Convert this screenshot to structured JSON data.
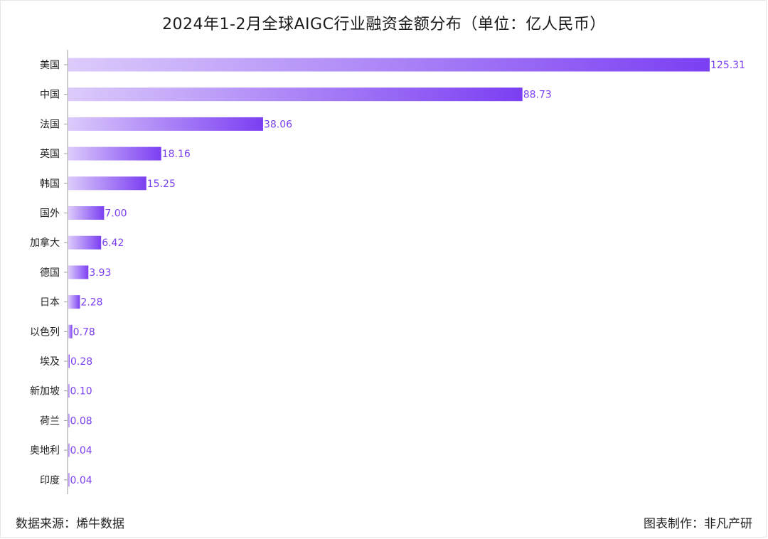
{
  "title": "2024年1-2月全球AIGC行业融资金额分布（单位：亿人民币）",
  "footer": {
    "source": "数据来源：烯牛数据",
    "maker": "图表制作：非凡产研"
  },
  "chart_data": {
    "type": "bar",
    "orientation": "horizontal",
    "title": "2024年1-2月全球AIGC行业融资金额分布（单位：亿人民币）",
    "xlabel": "",
    "ylabel": "",
    "grid": false,
    "categories": [
      "美国",
      "中国",
      "法国",
      "英国",
      "韩国",
      "国外",
      "加拿大",
      "德国",
      "日本",
      "以色列",
      "埃及",
      "新加坡",
      "荷兰",
      "奥地利",
      "印度"
    ],
    "values": [
      125.31,
      88.73,
      38.06,
      18.16,
      15.25,
      7.0,
      6.42,
      3.93,
      2.28,
      0.78,
      0.28,
      0.1,
      0.08,
      0.04,
      0.04
    ],
    "value_labels": [
      "125.31",
      "88.73",
      "38.06",
      "18.16",
      "15.25",
      "7.00",
      "6.42",
      "3.93",
      "2.28",
      "0.78",
      "0.28",
      "0.10",
      "0.08",
      "0.04",
      "0.04"
    ],
    "xlim": [
      0,
      125.31
    ],
    "colors": {
      "bar_start": "#dccbfb",
      "bar_end": "#7b3ff2",
      "label": "#7b3ff2",
      "axis": "#999999"
    }
  }
}
